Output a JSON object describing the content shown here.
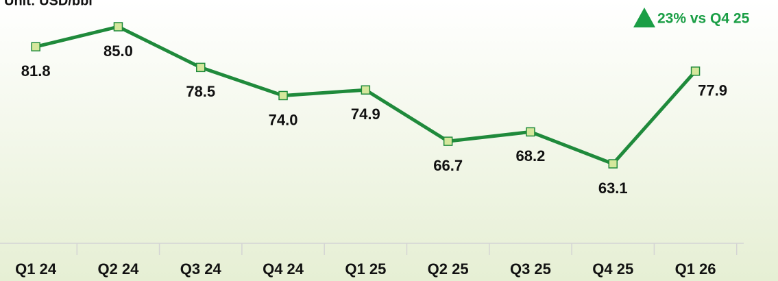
{
  "chart_data": {
    "type": "line",
    "title": "Unit: USD/bbl",
    "annotation": "23% vs Q4 25",
    "categories": [
      "Q1 24",
      "Q2 24",
      "Q3 24",
      "Q4 24",
      "Q1 25",
      "Q2 25",
      "Q3 25",
      "Q4 25",
      "Q1 26"
    ],
    "values": [
      81.8,
      85.0,
      78.5,
      74.0,
      74.9,
      66.7,
      68.2,
      63.1,
      77.9
    ],
    "value_labels": [
      "81.8",
      "85.0",
      "78.5",
      "74.0",
      "74.9",
      "66.7",
      "68.2",
      "63.1",
      "77.9"
    ],
    "color": "#1f8a3b",
    "marker_color": "#d5e79c",
    "annotation_color": "#1a9e45"
  }
}
